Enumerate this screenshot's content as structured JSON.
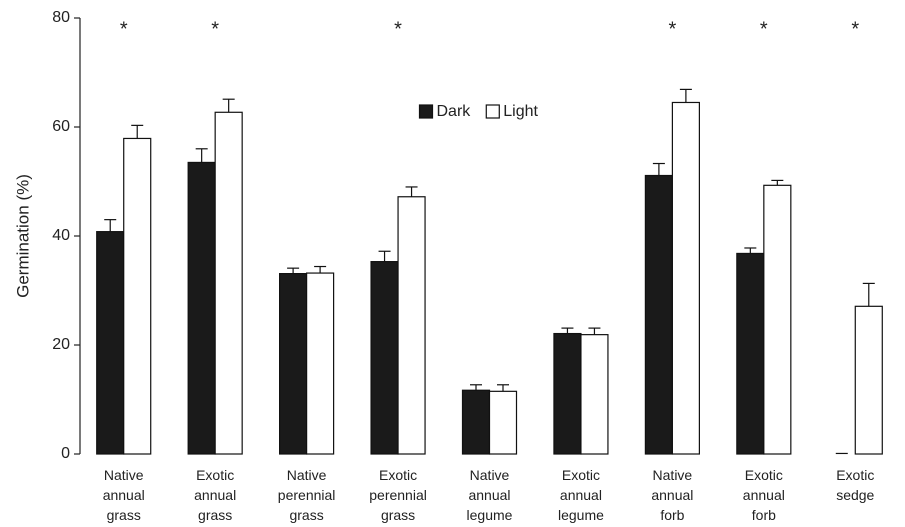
{
  "chart_data": {
    "type": "bar",
    "ylabel": "Germination (%)",
    "categories": [
      "Native annual grass",
      "Exotic annual grass",
      "Native perennial grass",
      "Exotic perennial grass",
      "Native annual legume",
      "Exotic annual legume",
      "Native annual forb",
      "Exotic annual forb",
      "Exotic sedge"
    ],
    "series": [
      {
        "name": "Dark",
        "color": "#1a1a1a",
        "values": [
          40.8,
          53.5,
          33.1,
          35.3,
          11.7,
          22.1,
          51.1,
          36.8,
          0
        ],
        "errors": [
          2.2,
          2.5,
          1.0,
          1.9,
          1.0,
          1.0,
          2.2,
          1.0,
          0.1
        ]
      },
      {
        "name": "Light",
        "color": "#ffffff",
        "values": [
          57.9,
          62.7,
          33.2,
          47.2,
          11.5,
          21.9,
          64.5,
          49.3,
          27.1
        ],
        "errors": [
          2.4,
          2.4,
          1.2,
          1.8,
          1.2,
          1.2,
          2.4,
          0.9,
          4.2
        ]
      }
    ],
    "significance": [
      "*",
      "*",
      null,
      "*",
      null,
      null,
      "*",
      "*",
      "*"
    ],
    "ylim": [
      0,
      80
    ],
    "yticks": [
      0,
      20,
      40,
      60,
      80
    ],
    "legend": "upper center",
    "grid": false
  }
}
